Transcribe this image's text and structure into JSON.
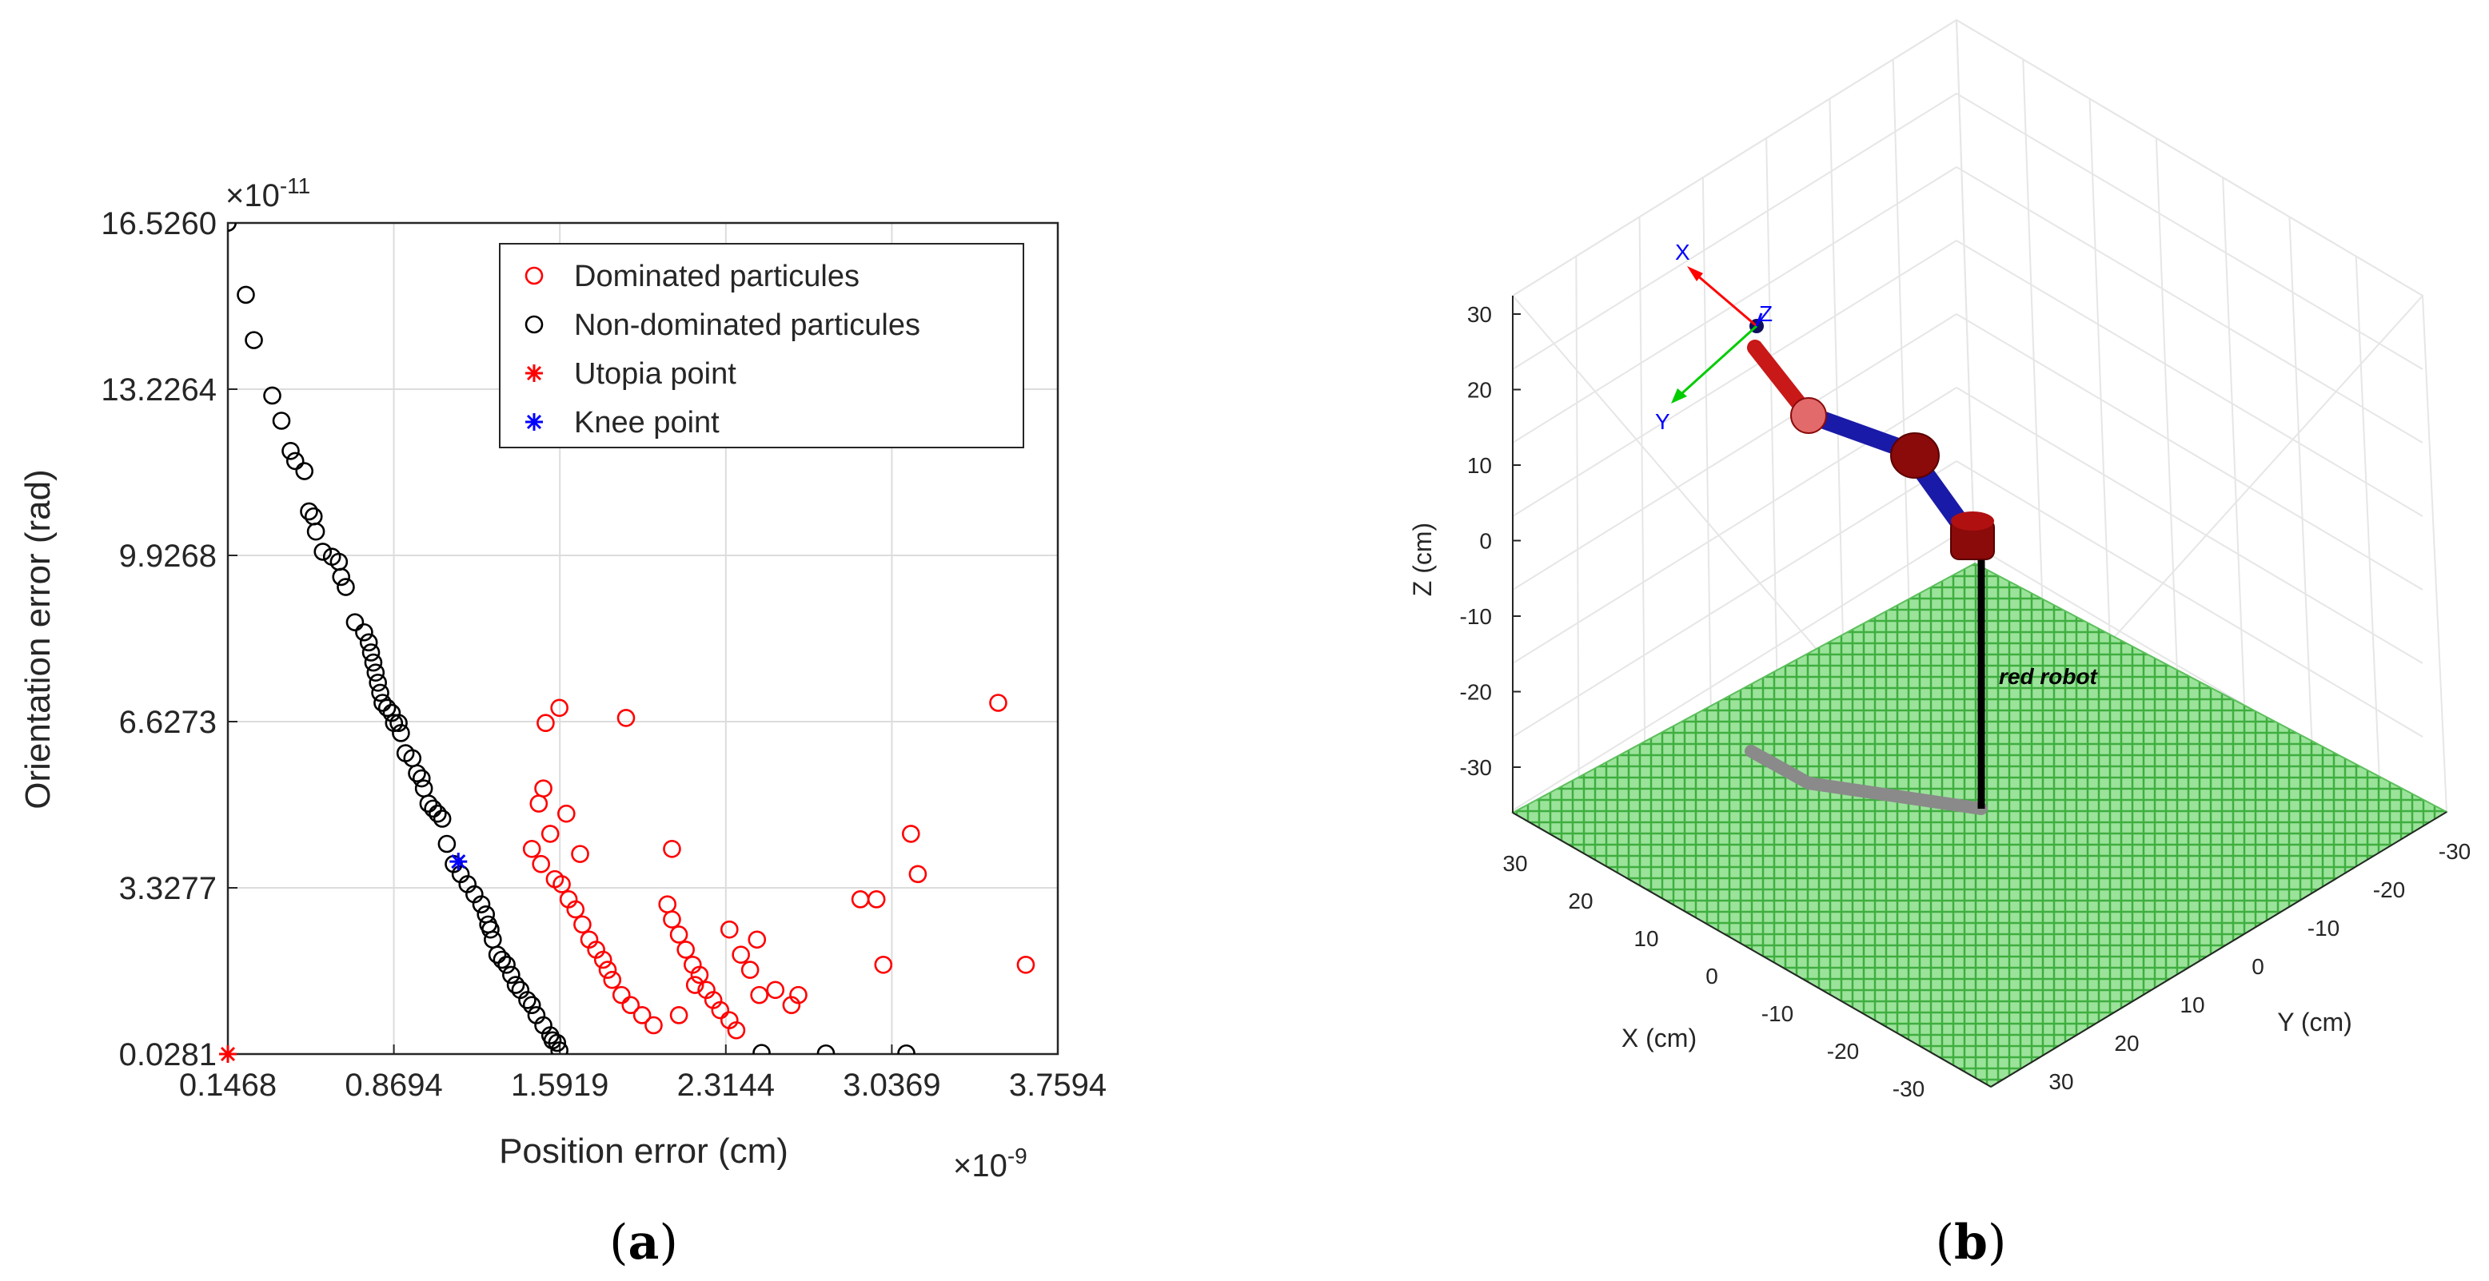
{
  "chart_data": [
    {
      "panel": "a",
      "type": "scatter",
      "xlabel": "Position error (cm)",
      "ylabel": "Orientation error (rad)",
      "x_exponent": "×10",
      "x_exponent_power": "-9",
      "y_exponent": "×10",
      "y_exponent_power": "-11",
      "xlim": [
        0.1468,
        3.7594
      ],
      "ylim": [
        0.0281,
        16.526
      ],
      "xticks": [
        "0.1468",
        "0.8694",
        "1.5919",
        "2.3144",
        "3.0369",
        "3.7594"
      ],
      "yticks": [
        "0.0281",
        "3.3277",
        "6.6273",
        "9.9268",
        "13.2264",
        "16.5260"
      ],
      "grid": true,
      "legend_position": "top-right",
      "legend": [
        {
          "label": "Dominated particules",
          "marker": "circle",
          "color": "#ff0000"
        },
        {
          "label": "Non-dominated particules",
          "marker": "circle",
          "color": "#000000"
        },
        {
          "label": "Utopia point",
          "marker": "asterisk",
          "color": "#ff0000"
        },
        {
          "label": "Knee point",
          "marker": "asterisk",
          "color": "#0000ff"
        }
      ],
      "series": [
        {
          "name": "Non-dominated particules",
          "color": "#000000",
          "marker": "circle",
          "points": [
            [
              0.146,
              16.53
            ],
            [
              0.225,
              15.1
            ],
            [
              0.26,
              14.2
            ],
            [
              0.34,
              13.1
            ],
            [
              0.38,
              12.6
            ],
            [
              0.42,
              12.0
            ],
            [
              0.44,
              11.8
            ],
            [
              0.48,
              11.6
            ],
            [
              0.5,
              10.8
            ],
            [
              0.52,
              10.7
            ],
            [
              0.53,
              10.4
            ],
            [
              0.56,
              10.0
            ],
            [
              0.6,
              9.9
            ],
            [
              0.63,
              9.8
            ],
            [
              0.64,
              9.5
            ],
            [
              0.66,
              9.3
            ],
            [
              0.7,
              8.6
            ],
            [
              0.74,
              8.4
            ],
            [
              0.76,
              8.2
            ],
            [
              0.77,
              8.0
            ],
            [
              0.78,
              7.8
            ],
            [
              0.79,
              7.6
            ],
            [
              0.8,
              7.4
            ],
            [
              0.81,
              7.2
            ],
            [
              0.82,
              7.0
            ],
            [
              0.84,
              6.9
            ],
            [
              0.86,
              6.8
            ],
            [
              0.87,
              6.6
            ],
            [
              0.89,
              6.6
            ],
            [
              0.9,
              6.4
            ],
            [
              0.92,
              6.0
            ],
            [
              0.95,
              5.9
            ],
            [
              0.97,
              5.6
            ],
            [
              0.99,
              5.5
            ],
            [
              1.0,
              5.3
            ],
            [
              1.02,
              5.0
            ],
            [
              1.04,
              4.9
            ],
            [
              1.06,
              4.8
            ],
            [
              1.08,
              4.7
            ],
            [
              1.1,
              4.2
            ],
            [
              1.13,
              3.8
            ],
            [
              1.16,
              3.6
            ],
            [
              1.19,
              3.4
            ],
            [
              1.22,
              3.2
            ],
            [
              1.25,
              3.0
            ],
            [
              1.27,
              2.8
            ],
            [
              1.28,
              2.6
            ],
            [
              1.29,
              2.5
            ],
            [
              1.3,
              2.3
            ],
            [
              1.32,
              2.0
            ],
            [
              1.34,
              1.9
            ],
            [
              1.36,
              1.8
            ],
            [
              1.38,
              1.6
            ],
            [
              1.4,
              1.4
            ],
            [
              1.42,
              1.3
            ],
            [
              1.45,
              1.1
            ],
            [
              1.47,
              1.0
            ],
            [
              1.49,
              0.8
            ],
            [
              1.52,
              0.6
            ],
            [
              1.55,
              0.4
            ],
            [
              1.56,
              0.3
            ],
            [
              1.58,
              0.25
            ],
            [
              1.59,
              0.1
            ],
            [
              2.47,
              0.05
            ],
            [
              2.75,
              0.04
            ],
            [
              3.1,
              0.04
            ]
          ]
        },
        {
          "name": "Dominated particules",
          "color": "#ff0000",
          "marker": "circle",
          "points": [
            [
              1.59,
              6.9
            ],
            [
              1.53,
              6.6
            ],
            [
              1.88,
              6.7
            ],
            [
              1.52,
              5.3
            ],
            [
              1.5,
              5.0
            ],
            [
              1.62,
              4.8
            ],
            [
              1.55,
              4.4
            ],
            [
              1.68,
              4.0
            ],
            [
              1.47,
              4.1
            ],
            [
              1.51,
              3.8
            ],
            [
              1.57,
              3.5
            ],
            [
              1.6,
              3.4
            ],
            [
              1.63,
              3.1
            ],
            [
              1.66,
              2.9
            ],
            [
              1.69,
              2.6
            ],
            [
              1.72,
              2.3
            ],
            [
              1.75,
              2.1
            ],
            [
              1.78,
              1.9
            ],
            [
              1.8,
              1.7
            ],
            [
              1.82,
              1.5
            ],
            [
              1.86,
              1.2
            ],
            [
              1.9,
              1.0
            ],
            [
              1.95,
              0.8
            ],
            [
              2.0,
              0.6
            ],
            [
              2.06,
              3.0
            ],
            [
              2.08,
              2.7
            ],
            [
              2.11,
              2.4
            ],
            [
              2.14,
              2.1
            ],
            [
              2.17,
              1.8
            ],
            [
              2.2,
              1.6
            ],
            [
              2.23,
              1.3
            ],
            [
              2.26,
              1.1
            ],
            [
              2.29,
              0.9
            ],
            [
              2.33,
              0.7
            ],
            [
              2.36,
              0.5
            ],
            [
              2.38,
              2.0
            ],
            [
              2.42,
              1.7
            ],
            [
              2.46,
              1.2
            ],
            [
              2.08,
              4.1
            ],
            [
              2.33,
              2.5
            ],
            [
              2.45,
              2.3
            ],
            [
              2.53,
              1.3
            ],
            [
              2.6,
              1.0
            ],
            [
              2.63,
              1.2
            ],
            [
              2.11,
              0.8
            ],
            [
              2.18,
              1.4
            ],
            [
              2.9,
              3.1
            ],
            [
              2.97,
              3.1
            ],
            [
              3.0,
              1.8
            ],
            [
              3.12,
              4.4
            ],
            [
              3.15,
              3.6
            ],
            [
              3.5,
              7.0
            ],
            [
              3.62,
              1.8
            ]
          ]
        },
        {
          "name": "Utopia point",
          "color": "#ff0000",
          "marker": "asterisk",
          "points": [
            [
              0.1468,
              0.0281
            ]
          ]
        },
        {
          "name": "Knee point",
          "color": "#0000ff",
          "marker": "asterisk",
          "points": [
            [
              1.15,
              3.85
            ]
          ]
        }
      ]
    },
    {
      "panel": "b",
      "type": "3d-scene",
      "xlabel": "X (cm)",
      "ylabel": "Y (cm)",
      "zlabel": "Z (cm)",
      "zticks": [
        "30",
        "20",
        "10",
        "0",
        "-10",
        "-20",
        "-30"
      ],
      "xticks": [
        "30",
        "20",
        "10",
        "0",
        "-10",
        "-20",
        "-30"
      ],
      "yticks": [
        "-30",
        "-20",
        "-10",
        "0",
        "10",
        "20",
        "30"
      ],
      "annotation": "red robot",
      "frame_labels": [
        "X",
        "Y",
        "Z"
      ],
      "colors": {
        "floor": "#7fd67f",
        "link": "#1010a0",
        "joint": "#8b0a0a",
        "shadow": "#808080"
      }
    }
  ],
  "captions": {
    "a": "a",
    "b": "b"
  }
}
